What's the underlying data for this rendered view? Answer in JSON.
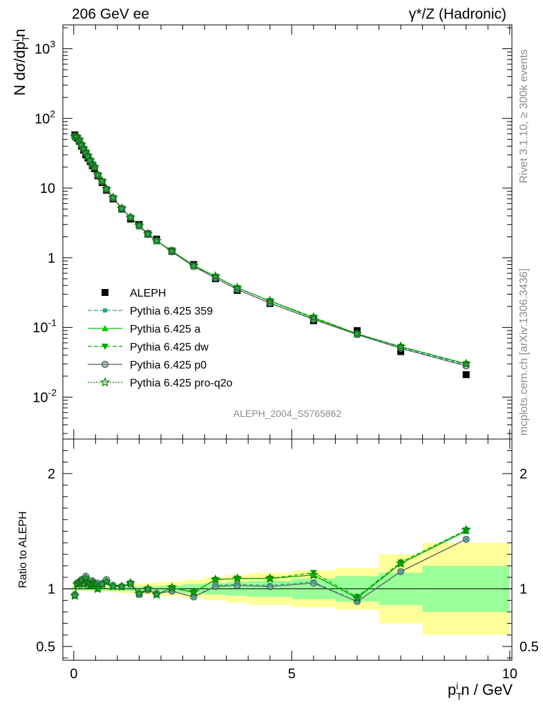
{
  "header": {
    "left_title": "206 GeV ee",
    "right_title": "γ*/Z (Hadronic)"
  },
  "side_text": {
    "rivet": "Rivet 3.1.10, ≥ 300k events",
    "mcplots": "mcplots.cern.ch [arXiv:1306.3436]"
  },
  "analysis_label": "ALEPH_2004_S5765862",
  "chart_data": [
    {
      "type": "scatter",
      "panel": "main",
      "ylabel": "N dσ/dp_T^i n",
      "yscale": "log",
      "ylim": [
        0.0025,
        2200
      ],
      "xlim": [
        -0.25,
        10.05
      ],
      "yticks": [
        "10^3",
        "10^2",
        "10",
        "1",
        "10^-1",
        "10^-2"
      ],
      "x": [
        0.025,
        0.075,
        0.125,
        0.175,
        0.225,
        0.275,
        0.325,
        0.375,
        0.425,
        0.475,
        0.55,
        0.65,
        0.75,
        0.9,
        1.1,
        1.3,
        1.5,
        1.7,
        1.9,
        2.25,
        2.75,
        3.25,
        3.75,
        4.5,
        5.5,
        6.5,
        7.5,
        9.0
      ],
      "series": [
        {
          "name": "ALEPH",
          "color": "#000000",
          "marker": "square",
          "values": [
            58,
            52,
            47,
            40,
            35,
            30,
            27,
            24,
            21,
            19,
            15,
            12,
            9.3,
            7,
            5,
            3.6,
            3,
            2.2,
            1.85,
            1.25,
            0.8,
            0.5,
            0.34,
            0.22,
            0.125,
            0.09,
            0.045,
            0.021
          ]
        },
        {
          "name": "Pythia 6.425 359",
          "color": "#1fa595",
          "marker": "square-small",
          "line": "dashed",
          "values": [
            56,
            53,
            48,
            43,
            38,
            33,
            29,
            26,
            23,
            20,
            16,
            12.5,
            10,
            7.4,
            5.2,
            3.7,
            2.8,
            2.2,
            1.75,
            1.25,
            0.76,
            0.51,
            0.35,
            0.225,
            0.13,
            0.079,
            0.051,
            0.029
          ]
        },
        {
          "name": "Pythia 6.425 a",
          "color": "#00cc00",
          "marker": "triangle-up",
          "line": "solid",
          "values": [
            55,
            54,
            49,
            42,
            37,
            33,
            29,
            25,
            22,
            20,
            15.5,
            12.6,
            9.7,
            7.3,
            5.1,
            3.8,
            2.9,
            2.2,
            1.75,
            1.25,
            0.78,
            0.54,
            0.37,
            0.24,
            0.135,
            0.081,
            0.053,
            0.03
          ]
        },
        {
          "name": "Pythia 6.425 dw",
          "color": "#00aa00",
          "marker": "triangle-down",
          "line": "dashed",
          "values": [
            55,
            54,
            49,
            42,
            37,
            33,
            29,
            25,
            22,
            20,
            15.5,
            12.6,
            9.7,
            7.3,
            5.1,
            3.8,
            2.9,
            2.2,
            1.75,
            1.25,
            0.77,
            0.54,
            0.37,
            0.24,
            0.14,
            0.081,
            0.053,
            0.03
          ]
        },
        {
          "name": "Pythia 6.425 p0",
          "color": "#555555",
          "marker": "circle-open",
          "line": "solid",
          "values": [
            55,
            54,
            48,
            42,
            37,
            32,
            29,
            25,
            22,
            20,
            15.3,
            12.4,
            9.6,
            7.2,
            5.1,
            3.8,
            2.85,
            2.15,
            1.75,
            1.22,
            0.75,
            0.51,
            0.35,
            0.223,
            0.13,
            0.079,
            0.05,
            0.028
          ]
        },
        {
          "name": "Pythia 6.425 pro-q2o",
          "color": "#007a00",
          "marker": "star-open",
          "line": "dotted",
          "values": [
            55,
            54,
            49,
            42,
            37,
            33,
            29,
            25,
            22,
            20,
            15.5,
            12.6,
            9.7,
            7.3,
            5.1,
            3.8,
            2.9,
            2.2,
            1.75,
            1.25,
            0.77,
            0.54,
            0.37,
            0.24,
            0.14,
            0.081,
            0.053,
            0.03
          ]
        }
      ]
    },
    {
      "type": "line",
      "panel": "ratio",
      "ylabel": "Ratio to ALEPH",
      "xlabel": "p_T^i n / GeV",
      "ylim": [
        0.38,
        2.3
      ],
      "xlim": [
        -0.25,
        10.05
      ],
      "yticks": [
        "0.5",
        "1",
        "2"
      ],
      "xticks": [
        "0",
        "5",
        "10"
      ],
      "reference": 1,
      "bands": {
        "edges": [
          -0.05,
          0.05,
          0.1,
          0.15,
          0.2,
          0.25,
          0.3,
          0.35,
          0.4,
          0.45,
          0.5,
          0.6,
          0.7,
          0.8,
          1.0,
          1.2,
          1.4,
          1.6,
          1.8,
          2.0,
          2.5,
          3.0,
          3.5,
          4.0,
          5.0,
          6.0,
          7.0,
          8.0,
          10.0
        ],
        "stat_color": "#99ff99",
        "stat_halfwidth": [
          0.012,
          0.012,
          0.012,
          0.012,
          0.012,
          0.012,
          0.012,
          0.012,
          0.012,
          0.012,
          0.012,
          0.012,
          0.012,
          0.014,
          0.016,
          0.018,
          0.02,
          0.022,
          0.024,
          0.03,
          0.04,
          0.05,
          0.06,
          0.07,
          0.09,
          0.11,
          0.14,
          0.2
        ],
        "syst_color": "#ffff99",
        "syst_halfwidth": [
          0.02,
          0.02,
          0.02,
          0.02,
          0.02,
          0.02,
          0.02,
          0.02,
          0.02,
          0.02,
          0.02,
          0.02,
          0.025,
          0.03,
          0.035,
          0.04,
          0.045,
          0.05,
          0.055,
          0.065,
          0.08,
          0.1,
          0.12,
          0.14,
          0.16,
          0.18,
          0.3,
          0.4
        ]
      },
      "x": [
        0.025,
        0.075,
        0.125,
        0.175,
        0.225,
        0.275,
        0.325,
        0.375,
        0.425,
        0.475,
        0.55,
        0.65,
        0.75,
        0.9,
        1.1,
        1.3,
        1.5,
        1.7,
        1.9,
        2.25,
        2.75,
        3.25,
        3.75,
        4.5,
        5.5,
        6.5,
        7.5,
        9.0
      ],
      "series": [
        {
          "name": "Pythia 6.425 359",
          "color": "#1fa595",
          "marker": "square-small",
          "line": "dashed",
          "values": [
            0.95,
            1.05,
            1.06,
            1.08,
            1.05,
            1.1,
            1.06,
            1.04,
            1.07,
            1.05,
            1.05,
            1.04,
            1.07,
            1.03,
            1.02,
            1.04,
            0.95,
            0.99,
            0.96,
            0.98,
            0.93,
            1.03,
            1.04,
            1.03,
            1.06,
            0.89,
            1.15,
            1.43
          ]
        },
        {
          "name": "Pythia 6.425 a",
          "color": "#00cc00",
          "marker": "triangle-up",
          "line": "solid",
          "values": [
            0.94,
            1.04,
            1.05,
            1.07,
            1.04,
            1.09,
            1.05,
            1.03,
            1.05,
            1.04,
            1.0,
            1.04,
            1.06,
            1.02,
            1.02,
            1.05,
            0.96,
            1.0,
            0.95,
            1.01,
            0.97,
            1.08,
            1.09,
            1.09,
            1.12,
            0.92,
            1.22,
            1.5
          ]
        },
        {
          "name": "Pythia 6.425 dw",
          "color": "#00aa00",
          "marker": "triangle-down",
          "line": "dashed",
          "values": [
            0.94,
            1.04,
            1.05,
            1.07,
            1.04,
            1.09,
            1.05,
            1.03,
            1.05,
            1.04,
            1.0,
            1.04,
            1.06,
            1.02,
            1.02,
            1.05,
            0.96,
            1.0,
            0.95,
            1.01,
            0.97,
            1.08,
            1.09,
            1.09,
            1.14,
            0.93,
            1.23,
            1.51
          ]
        },
        {
          "name": "Pythia 6.425 p0",
          "color": "#555555",
          "marker": "circle-open",
          "line": "solid",
          "values": [
            0.95,
            1.05,
            1.06,
            1.08,
            1.05,
            1.11,
            1.06,
            1.04,
            1.07,
            1.05,
            1.05,
            1.04,
            1.08,
            1.03,
            1.02,
            1.04,
            0.95,
            0.99,
            0.96,
            0.98,
            0.93,
            1.02,
            1.03,
            1.02,
            1.05,
            0.89,
            1.15,
            1.43
          ]
        },
        {
          "name": "Pythia 6.425 pro-q2o",
          "color": "#007a00",
          "marker": "star-open",
          "line": "dotted",
          "values": [
            0.94,
            1.04,
            1.05,
            1.07,
            1.04,
            1.09,
            1.05,
            1.03,
            1.05,
            1.04,
            1.0,
            1.04,
            1.06,
            1.02,
            1.02,
            1.05,
            0.96,
            1.0,
            0.95,
            1.01,
            0.97,
            1.08,
            1.09,
            1.09,
            1.12,
            0.92,
            1.22,
            1.51
          ]
        }
      ]
    }
  ]
}
